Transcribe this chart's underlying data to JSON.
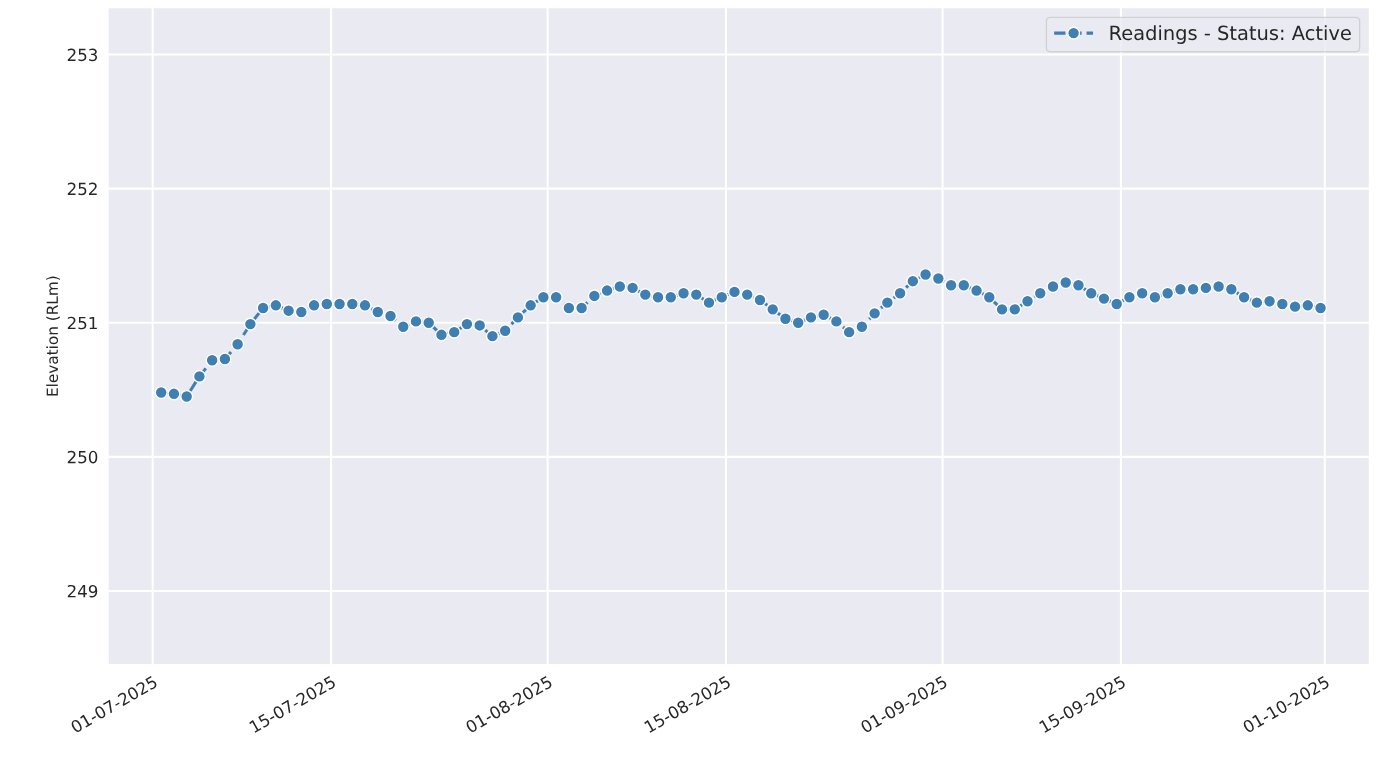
{
  "chart_data": {
    "type": "line",
    "ylabel": "Elevation (RLm)",
    "x": [
      "2025-07-01T16:00",
      "2025-07-02T16:00",
      "2025-07-03T16:00",
      "2025-07-04T16:00",
      "2025-07-05T16:00",
      "2025-07-06T16:00",
      "2025-07-07T16:00",
      "2025-07-08T16:00",
      "2025-07-09T16:00",
      "2025-07-10T16:00",
      "2025-07-11T16:00",
      "2025-07-12T16:00",
      "2025-07-13T16:00",
      "2025-07-14T16:00",
      "2025-07-15T16:00",
      "2025-07-16T16:00",
      "2025-07-17T16:00",
      "2025-07-18T16:00",
      "2025-07-19T16:00",
      "2025-07-20T16:00",
      "2025-07-21T16:00",
      "2025-07-22T16:00",
      "2025-07-23T16:00",
      "2025-07-24T16:00",
      "2025-07-25T16:00",
      "2025-07-26T16:00",
      "2025-07-27T16:00",
      "2025-07-28T16:00",
      "2025-07-29T16:00",
      "2025-07-30T16:00",
      "2025-07-31T16:00",
      "2025-08-01T16:00",
      "2025-08-02T16:00",
      "2025-08-03T16:00",
      "2025-08-04T16:00",
      "2025-08-05T16:00",
      "2025-08-06T16:00",
      "2025-08-07T16:00",
      "2025-08-08T16:00",
      "2025-08-09T16:00",
      "2025-08-10T16:00",
      "2025-08-11T16:00",
      "2025-08-12T16:00",
      "2025-08-13T16:00",
      "2025-08-14T16:00",
      "2025-08-15T16:00",
      "2025-08-16T16:00",
      "2025-08-17T16:00",
      "2025-08-18T16:00",
      "2025-08-19T16:00",
      "2025-08-20T16:00",
      "2025-08-21T16:00",
      "2025-08-22T16:00",
      "2025-08-23T16:00",
      "2025-08-24T16:00",
      "2025-08-25T16:00",
      "2025-08-26T16:00",
      "2025-08-27T16:00",
      "2025-08-28T16:00",
      "2025-08-29T16:00",
      "2025-08-30T16:00",
      "2025-08-31T16:00",
      "2025-09-01T16:00",
      "2025-09-02T16:00",
      "2025-09-03T16:00",
      "2025-09-04T16:00",
      "2025-09-05T16:00",
      "2025-09-06T16:00",
      "2025-09-07T16:00",
      "2025-09-08T16:00",
      "2025-09-09T16:00",
      "2025-09-10T16:00",
      "2025-09-11T16:00",
      "2025-09-12T16:00",
      "2025-09-13T16:00",
      "2025-09-14T16:00",
      "2025-09-15T16:00",
      "2025-09-16T16:00",
      "2025-09-17T16:00",
      "2025-09-18T16:00",
      "2025-09-19T16:00",
      "2025-09-20T16:00",
      "2025-09-21T16:00",
      "2025-09-22T16:00",
      "2025-09-23T16:00",
      "2025-09-24T16:00",
      "2025-09-25T16:00",
      "2025-09-26T16:00",
      "2025-09-27T16:00",
      "2025-09-28T16:00",
      "2025-09-29T16:00",
      "2025-09-30T16:00"
    ],
    "series": [
      {
        "name": "Readings - Status: Active",
        "color": "#3f7fb1",
        "values": [
          250.48,
          250.47,
          250.45,
          250.6,
          250.72,
          250.73,
          250.84,
          250.99,
          251.11,
          251.13,
          251.09,
          251.08,
          251.13,
          251.14,
          251.14,
          251.14,
          251.13,
          251.08,
          251.05,
          250.97,
          251.01,
          251.0,
          250.91,
          250.93,
          250.99,
          250.98,
          250.9,
          250.94,
          251.04,
          251.13,
          251.19,
          251.19,
          251.11,
          251.11,
          251.2,
          251.24,
          251.27,
          251.26,
          251.21,
          251.19,
          251.19,
          251.22,
          251.21,
          251.15,
          251.19,
          251.23,
          251.21,
          251.17,
          251.1,
          251.03,
          251.0,
          251.04,
          251.06,
          251.01,
          250.93,
          250.97,
          251.07,
          251.15,
          251.22,
          251.31,
          251.36,
          251.33,
          251.28,
          251.28,
          251.24,
          251.19,
          251.1,
          251.1,
          251.16,
          251.22,
          251.27,
          251.3,
          251.28,
          251.22,
          251.18,
          251.14,
          251.19,
          251.22,
          251.19,
          251.22,
          251.25,
          251.25,
          251.26,
          251.27,
          251.25,
          251.19,
          251.15,
          251.16,
          251.14,
          251.12,
          251.13,
          251.11
        ]
      }
    ],
    "xlim": [
      "2025-06-27T12:00",
      "2025-10-04T12:00"
    ],
    "xticks": [
      {
        "value": "2025-07-01",
        "label": "01-07-2025"
      },
      {
        "value": "2025-07-15",
        "label": "15-07-2025"
      },
      {
        "value": "2025-08-01",
        "label": "01-08-2025"
      },
      {
        "value": "2025-08-15",
        "label": "15-08-2025"
      },
      {
        "value": "2025-09-01",
        "label": "01-09-2025"
      },
      {
        "value": "2025-09-15",
        "label": "15-09-2025"
      },
      {
        "value": "2025-10-01",
        "label": "01-10-2025"
      }
    ],
    "ylim": [
      248.45,
      253.35
    ],
    "yticks": [
      249,
      250,
      251,
      252,
      253
    ],
    "grid": true,
    "legend": "top right",
    "marker": "circle",
    "line_style": "dashed"
  }
}
